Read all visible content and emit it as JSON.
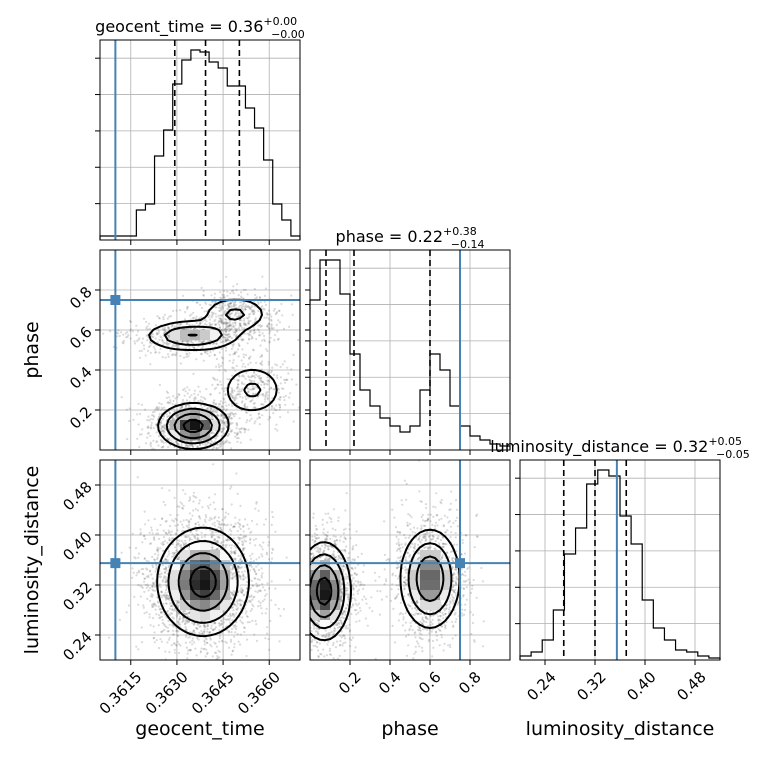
{
  "chart_data": {
    "type": "corner",
    "parameters": [
      {
        "name": "geocent_time",
        "label": "geocent_time",
        "range": [
          0.3605,
          0.367
        ],
        "truth": 0.361,
        "ticks": [
          0.3615,
          0.363,
          0.3645,
          0.366
        ],
        "tick_labels": [
          "0.3615",
          "0.3630",
          "0.3645",
          "0.3660"
        ],
        "title": "geocent_time = 0.36",
        "title_sup": "+0.00",
        "title_sub": "−0.00",
        "quantiles": [
          0.36293,
          0.36393,
          0.36503
        ],
        "hist": [
          0.02,
          0.02,
          0.02,
          0.02,
          0.15,
          0.18,
          0.42,
          0.55,
          0.78,
          0.9,
          0.95,
          0.94,
          0.89,
          0.86,
          0.77,
          0.77,
          0.66,
          0.56,
          0.4,
          0.18,
          0.1,
          0.02
        ]
      },
      {
        "name": "phase",
        "label": "phase",
        "range": [
          0.0,
          1.0
        ],
        "truth": 0.75,
        "ticks": [
          0.2,
          0.4,
          0.6,
          0.8
        ],
        "tick_labels": [
          "0.2",
          "0.4",
          "0.6",
          "0.8"
        ],
        "title": "phase = 0.22",
        "title_sup": "+0.38",
        "title_sub": "−0.14",
        "quantiles": [
          0.08,
          0.22,
          0.6
        ],
        "hist": [
          0.75,
          0.95,
          0.95,
          0.78,
          0.48,
          0.3,
          0.22,
          0.16,
          0.12,
          0.09,
          0.12,
          0.3,
          0.48,
          0.4,
          0.22,
          0.12,
          0.07,
          0.05,
          0.03,
          0.02
        ]
      },
      {
        "name": "luminosity_distance",
        "label": "luminosity_distance",
        "range": [
          0.2,
          0.52
        ],
        "truth": 0.355,
        "ticks": [
          0.24,
          0.32,
          0.4,
          0.48
        ],
        "tick_labels": [
          "0.24",
          "0.32",
          "0.40",
          "0.48"
        ],
        "title": "luminosity_distance = 0.32",
        "title_sup": "+0.05",
        "title_sub": "−0.05",
        "quantiles": [
          0.27,
          0.32,
          0.37
        ],
        "hist": [
          0.02,
          0.04,
          0.1,
          0.25,
          0.53,
          0.66,
          0.88,
          0.95,
          0.92,
          0.72,
          0.58,
          0.3,
          0.16,
          0.1,
          0.05,
          0.04,
          0.02,
          0.01
        ]
      }
    ],
    "pairs": [
      {
        "x": 0,
        "y": 1,
        "modes": [
          {
            "mx": 0.36353,
            "my": 0.12,
            "sx": 0.00055,
            "sy": 0.055,
            "w": 0.45
          },
          {
            "mx": 0.36545,
            "my": 0.3,
            "sx": 0.00055,
            "sy": 0.07,
            "w": 0.15
          },
          {
            "mx": 0.3635,
            "my": 0.57,
            "sx": 0.0008,
            "sy": 0.04,
            "w": 0.25
          },
          {
            "mx": 0.3649,
            "my": 0.68,
            "sx": 0.0006,
            "sy": 0.05,
            "w": 0.15
          }
        ]
      },
      {
        "x": 0,
        "y": 2,
        "modes": [
          {
            "mx": 0.36385,
            "my": 0.325,
            "sx": 0.00072,
            "sy": 0.042,
            "w": 1.0
          }
        ]
      },
      {
        "x": 1,
        "y": 2,
        "modes": [
          {
            "mx": 0.07,
            "my": 0.31,
            "sx": 0.065,
            "sy": 0.038,
            "w": 0.55
          },
          {
            "mx": 0.6,
            "my": 0.33,
            "sx": 0.075,
            "sy": 0.04,
            "w": 0.45
          }
        ]
      }
    ],
    "truth_color": "#4682b4",
    "line_color": "#000000",
    "grid": true
  }
}
